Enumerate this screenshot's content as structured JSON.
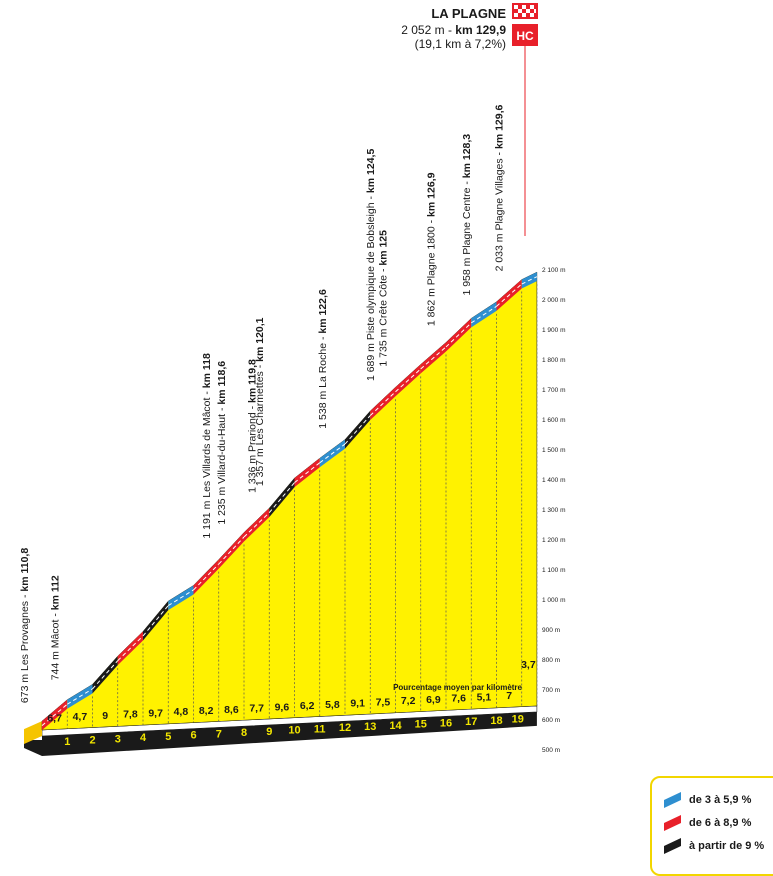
{
  "chart_data": {
    "type": "area",
    "summit": {
      "name": "LA PLAGNE",
      "line1_normal": "2 052 m - ",
      "line1_bold": "km 129,9",
      "line2": "(19,1 km à 7,2%)",
      "category": "HC"
    },
    "km_marks": [
      "1",
      "2",
      "3",
      "4",
      "5",
      "6",
      "7",
      "8",
      "9",
      "10",
      "11",
      "12",
      "13",
      "14",
      "15",
      "16",
      "17",
      "18",
      "19"
    ],
    "grades": [
      6.7,
      4.7,
      9,
      7.8,
      9.7,
      4.8,
      8.2,
      8.6,
      7.7,
      9.6,
      6.2,
      5.8,
      9.1,
      7.5,
      7.2,
      6.9,
      7.6,
      5.1,
      7,
      3.7
    ],
    "grade_labels": [
      "6,7",
      "4,7",
      "9",
      "7,8",
      "9,7",
      "4,8",
      "8,2",
      "8,6",
      "7,7",
      "9,6",
      "6,2",
      "5,8",
      "9,1",
      "7,5",
      "7,2",
      "6,9",
      "7,6",
      "5,1",
      "7",
      "3,7"
    ],
    "y_ticks": [
      "500 m",
      "600 m",
      "700 m",
      "800 m",
      "900 m",
      "1 000 m",
      "1 100 m",
      "1 200 m",
      "1 300 m",
      "1 400 m",
      "1 500 m",
      "1 600 m",
      "1 700 m",
      "1 800 m",
      "1 900 m",
      "2 000 m",
      "2 100 m"
    ],
    "ylim": [
      500,
      2100
    ],
    "waypoints": [
      {
        "d": 0,
        "elev": 673,
        "text": "673 m Les Provagnes - ",
        "km": "km 110,8"
      },
      {
        "d": 1.2,
        "elev": 744,
        "text": "744 m Mâcot - ",
        "km": "km 112"
      },
      {
        "d": 7.2,
        "elev": 1191,
        "text": "1 191 m  Les Villards de Mâcot - ",
        "km": "km 118"
      },
      {
        "d": 7.8,
        "elev": 1235,
        "text": "1 235 m Villard-du-Haut - ",
        "km": "km 118,6"
      },
      {
        "d": 9.0,
        "elev": 1336,
        "text": "1 336 m Prariond - ",
        "km": "km 119,8"
      },
      {
        "d": 9.3,
        "elev": 1357,
        "text": "1 357 m Les Charmettes - ",
        "km": "km 120,1"
      },
      {
        "d": 11.8,
        "elev": 1538,
        "text": "1 538 m La Roche - ",
        "km": "km 122,6"
      },
      {
        "d": 13.7,
        "elev": 1689,
        "text": "1 689 m Piste olympique de Bobsleigh - ",
        "km": "km 124,5"
      },
      {
        "d": 14.2,
        "elev": 1735,
        "text": "1 735 m Crête Côte - ",
        "km": "km 125"
      },
      {
        "d": 16.1,
        "elev": 1862,
        "text": "1 862 m Plagne 1800 - ",
        "km": "km 126,9"
      },
      {
        "d": 17.5,
        "elev": 1958,
        "text": "1 958 m Plagne Centre - ",
        "km": "km 128,3"
      },
      {
        "d": 18.8,
        "elev": 2033,
        "text": "2 033 m Plagne Villages - ",
        "km": "km 129,6"
      }
    ],
    "avg_note": "Pourcentage moyen par kilomètre",
    "legend": [
      {
        "label": "de 3 à 5,9 %",
        "color": "#2e8fd0"
      },
      {
        "label": "de 6 à 8,9 %",
        "color": "#e8202a"
      },
      {
        "label": "à partir de 9 %",
        "color": "#1a1a1a"
      }
    ],
    "colors": {
      "fill": "#fff200",
      "side": "#f5c400",
      "easy": "#2e8fd0",
      "mid": "#e8202a",
      "hard": "#1a1a1a"
    }
  }
}
